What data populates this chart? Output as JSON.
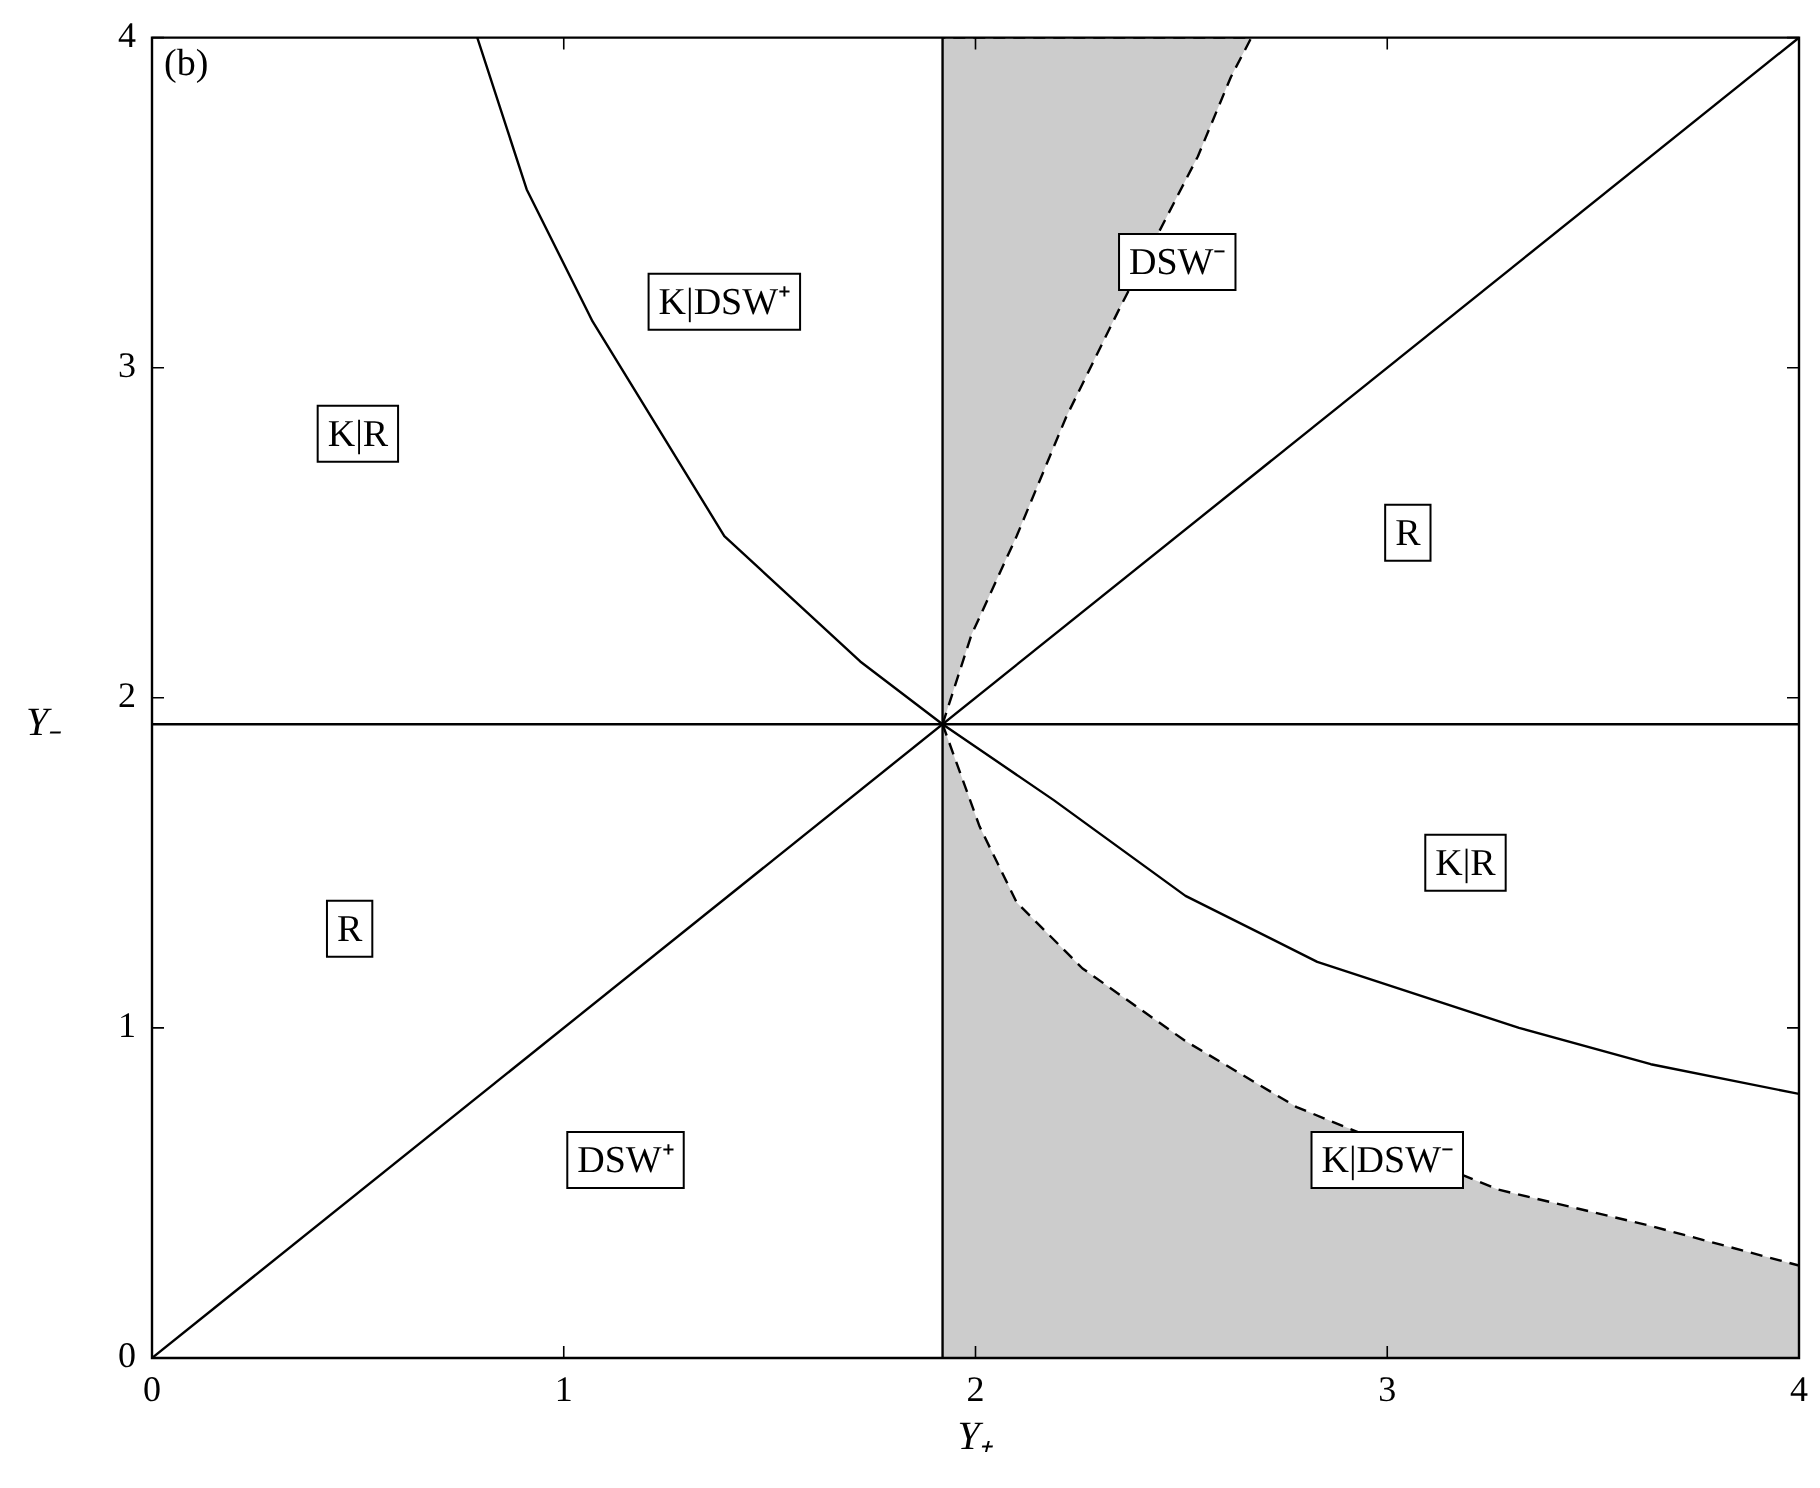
{
  "chart_data": {
    "type": "line",
    "xlabel": "Y₊",
    "ylabel": "Y₋",
    "xlim": [
      0,
      4
    ],
    "ylim": [
      0,
      4
    ],
    "xticks": [
      0,
      1,
      2,
      3,
      4
    ],
    "yticks": [
      0,
      1,
      2,
      3,
      4
    ],
    "grid": false,
    "legend": false,
    "marker": "none",
    "series": [
      {
        "type": "line",
        "color": "#000000",
        "line_style": "solid",
        "x": [
          0,
          4
        ],
        "values": [
          0,
          4
        ]
      },
      {
        "type": "line",
        "color": "#000000",
        "line_style": "solid",
        "x": [
          1.92,
          1.92
        ],
        "values": [
          0,
          4
        ]
      },
      {
        "type": "line",
        "color": "#000000",
        "line_style": "solid",
        "x": [
          0.79,
          0.91,
          1.07,
          1.39,
          1.72,
          1.92,
          2.19,
          2.51,
          2.83,
          3.32,
          3.64,
          4.0
        ],
        "values": [
          4,
          3.54,
          3.14,
          2.49,
          2.11,
          1.92,
          1.69,
          1.4,
          1.2,
          1.0,
          0.89,
          0.8
        ]
      },
      {
        "type": "area",
        "color": "#000000",
        "line_style": "dashed",
        "x": [
          1.92,
          1.99,
          2.1,
          2.22,
          2.35,
          2.54,
          2.62,
          2.67,
          1.92
        ],
        "values": [
          1.92,
          2.19,
          2.49,
          2.85,
          3.18,
          3.64,
          3.88,
          4,
          4
        ]
      },
      {
        "type": "area",
        "color": "#000000",
        "line_style": "dashed",
        "x": [
          1.92,
          2.01,
          2.1,
          2.26,
          2.51,
          2.78,
          3.27,
          3.64,
          4.0
        ],
        "values": [
          1.92,
          1.61,
          1.38,
          1.18,
          0.96,
          0.76,
          0.51,
          0.4,
          0.28
        ]
      }
    ],
    "ref_lines": [
      {
        "axis": "y",
        "value": 1.92,
        "color": "#000000"
      }
    ],
    "annotations": [
      "(b)",
      "K|R",
      "K|DSW⁺",
      "DSW⁻",
      "R",
      "K|R",
      "R",
      "DSW⁺",
      "K|DSW⁻"
    ]
  }
}
